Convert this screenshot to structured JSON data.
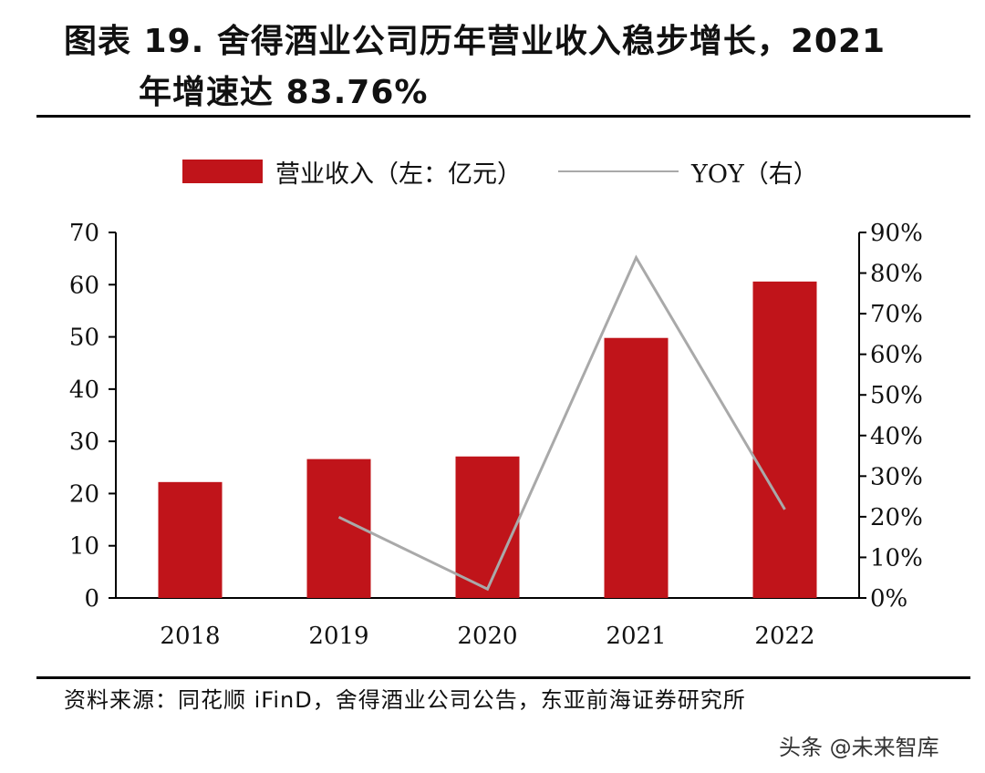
{
  "figure": {
    "title_line1": "图表 19. 舍得酒业公司历年营业收入稳步增长，2021",
    "title_line2": "年增速达 83.76%",
    "source": "资料来源：同花顺 iFinD，舍得酒业公司公告，东亚前海证券研究所",
    "watermark": "头条 @未来智库"
  },
  "chart_data": {
    "type": "bar+line",
    "categories": [
      "2018",
      "2019",
      "2020",
      "2021",
      "2022"
    ],
    "series": [
      {
        "name": "营业收入（左：亿元）",
        "type": "bar",
        "axis": "left",
        "values": [
          22.2,
          26.6,
          27.1,
          49.8,
          60.6
        ]
      },
      {
        "name": "YOY（右）",
        "type": "line",
        "axis": "right",
        "values": [
          null,
          19.9,
          2.2,
          83.8,
          21.8
        ]
      }
    ],
    "left_axis": {
      "min": 0,
      "max": 70,
      "ticks": [
        "0",
        "10",
        "20",
        "30",
        "40",
        "50",
        "60",
        "70"
      ]
    },
    "right_axis": {
      "min": 0,
      "max": 90,
      "ticks": [
        "0%",
        "10%",
        "20%",
        "30%",
        "40%",
        "50%",
        "60%",
        "70%",
        "80%",
        "90%"
      ]
    },
    "colors": {
      "bar": "#c0141a",
      "line": "#a9a9a9",
      "axis": "#000000"
    },
    "legend_position": "top-center",
    "grid": false
  }
}
